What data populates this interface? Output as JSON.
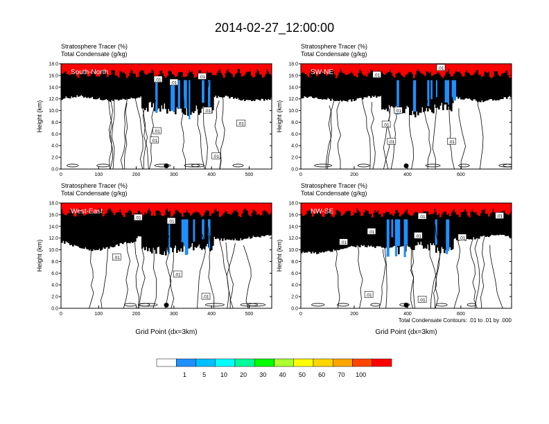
{
  "title": "2014-02-27_12:00:00",
  "chart_data": {
    "type": "heatmap",
    "title": "2014-02-27_12:00:00",
    "variables": {
      "shaded": "Stratosphere Tracer   (%)",
      "contoured": "Total Condensate   (g/kg)"
    },
    "y_ticks": [
      "0.0",
      "2.0",
      "4.0",
      "6.0",
      "8.0",
      "10.0",
      "12.0",
      "14.0",
      "16.0",
      "18.0"
    ],
    "ylim": [
      0,
      18
    ],
    "panels": [
      {
        "id": "south-north",
        "label": "South-North",
        "line1": "Stratosphere Tracer   (%)",
        "line2": "Total Condensate   (g/kg)",
        "ylabel": "Height (km)",
        "xlabel": "",
        "xlim": [
          0,
          560
        ],
        "x_ticks": [
          "0",
          "100",
          "200",
          "300",
          "400",
          "500"
        ],
        "x_tick_values": [
          0,
          100,
          200,
          300,
          400,
          500
        ],
        "marker_x": 280,
        "contour_labels": [
          {
            "x": 258,
            "y": 15.3,
            "text": ".01"
          },
          {
            "x": 300,
            "y": 14.8,
            "text": ".01"
          },
          {
            "x": 375,
            "y": 15.8,
            "text": ".01"
          },
          {
            "x": 255,
            "y": 6.5,
            "text": ".01"
          },
          {
            "x": 248,
            "y": 4.9,
            "text": ".01"
          },
          {
            "x": 390,
            "y": 10.0,
            "text": ".01"
          },
          {
            "x": 478,
            "y": 7.8,
            "text": ".01"
          },
          {
            "x": 412,
            "y": 2.2,
            "text": ".01"
          }
        ]
      },
      {
        "id": "sw-ne",
        "label": "SW-NE",
        "line1": "Stratosphere Tracer   (%)",
        "line2": "Total Condensate   (g/kg)",
        "ylabel": "Height (km)",
        "xlabel": "",
        "xlim": [
          0,
          790
        ],
        "x_ticks": [
          "0",
          "200",
          "400",
          "600"
        ],
        "x_tick_values": [
          0,
          200,
          400,
          600
        ],
        "marker_x": 395,
        "contour_labels": [
          {
            "x": 285,
            "y": 16.1,
            "text": ".01"
          },
          {
            "x": 525,
            "y": 17.3,
            "text": ".01"
          },
          {
            "x": 365,
            "y": 10.0,
            "text": ".01"
          },
          {
            "x": 320,
            "y": 7.6,
            "text": ".01"
          },
          {
            "x": 340,
            "y": 4.7,
            "text": ".01"
          },
          {
            "x": 565,
            "y": 4.7,
            "text": ".01"
          }
        ]
      },
      {
        "id": "west-east",
        "label": "West-East",
        "line1": "Stratosphere Tracer   (%)",
        "line2": "Total Condensate   (g/kg)",
        "ylabel": "Height (km)",
        "xlabel": "Grid Point (dx=3km)",
        "xlim": [
          0,
          560
        ],
        "x_ticks": [
          "0",
          "100",
          "200",
          "300",
          "400",
          "500"
        ],
        "x_tick_values": [
          0,
          100,
          200,
          300,
          400,
          500
        ],
        "marker_x": 280,
        "contour_labels": [
          {
            "x": 205,
            "y": 15.5,
            "text": ".01"
          },
          {
            "x": 293,
            "y": 14.9,
            "text": ".01"
          },
          {
            "x": 148,
            "y": 8.7,
            "text": ".01"
          },
          {
            "x": 310,
            "y": 5.8,
            "text": ".01"
          },
          {
            "x": 385,
            "y": 2.0,
            "text": ".01"
          }
        ]
      },
      {
        "id": "nw-se",
        "label": "NW-SE",
        "line1": "Stratosphere Tracer   (%)",
        "line2": "Total Condensate   (g/kg)",
        "ylabel": "Height (km)",
        "xlabel": "Grid Point (dx=3km)",
        "xlim": [
          0,
          790
        ],
        "x_ticks": [
          "0",
          "200",
          "400",
          "600"
        ],
        "x_tick_values": [
          0,
          200,
          400,
          600
        ],
        "marker_x": 395,
        "contour_labels": [
          {
            "x": 455,
            "y": 15.7,
            "text": ".01"
          },
          {
            "x": 745,
            "y": 15.8,
            "text": ".01"
          },
          {
            "x": 265,
            "y": 13.1,
            "text": ".01"
          },
          {
            "x": 160,
            "y": 11.3,
            "text": ".01"
          },
          {
            "x": 440,
            "y": 12.4,
            "text": ".01"
          },
          {
            "x": 605,
            "y": 12.1,
            "text": ".01"
          },
          {
            "x": 255,
            "y": 2.3,
            "text": ".01"
          },
          {
            "x": 455,
            "y": 1.5,
            "text": ".01"
          }
        ]
      }
    ],
    "contour_note": "Total Condensate Contours: .01 to .01 by .000",
    "colorbar": {
      "labels": [
        "1",
        "5",
        "10",
        "20",
        "30",
        "40",
        "50",
        "60",
        "70",
        "100"
      ],
      "colors": [
        "#ffffff",
        "#1e90ff",
        "#00bfff",
        "#00ffff",
        "#00fa9a",
        "#00ff00",
        "#adff2f",
        "#ffff00",
        "#ffd700",
        "#ffa500",
        "#ff4500",
        "#ff0000"
      ]
    }
  }
}
